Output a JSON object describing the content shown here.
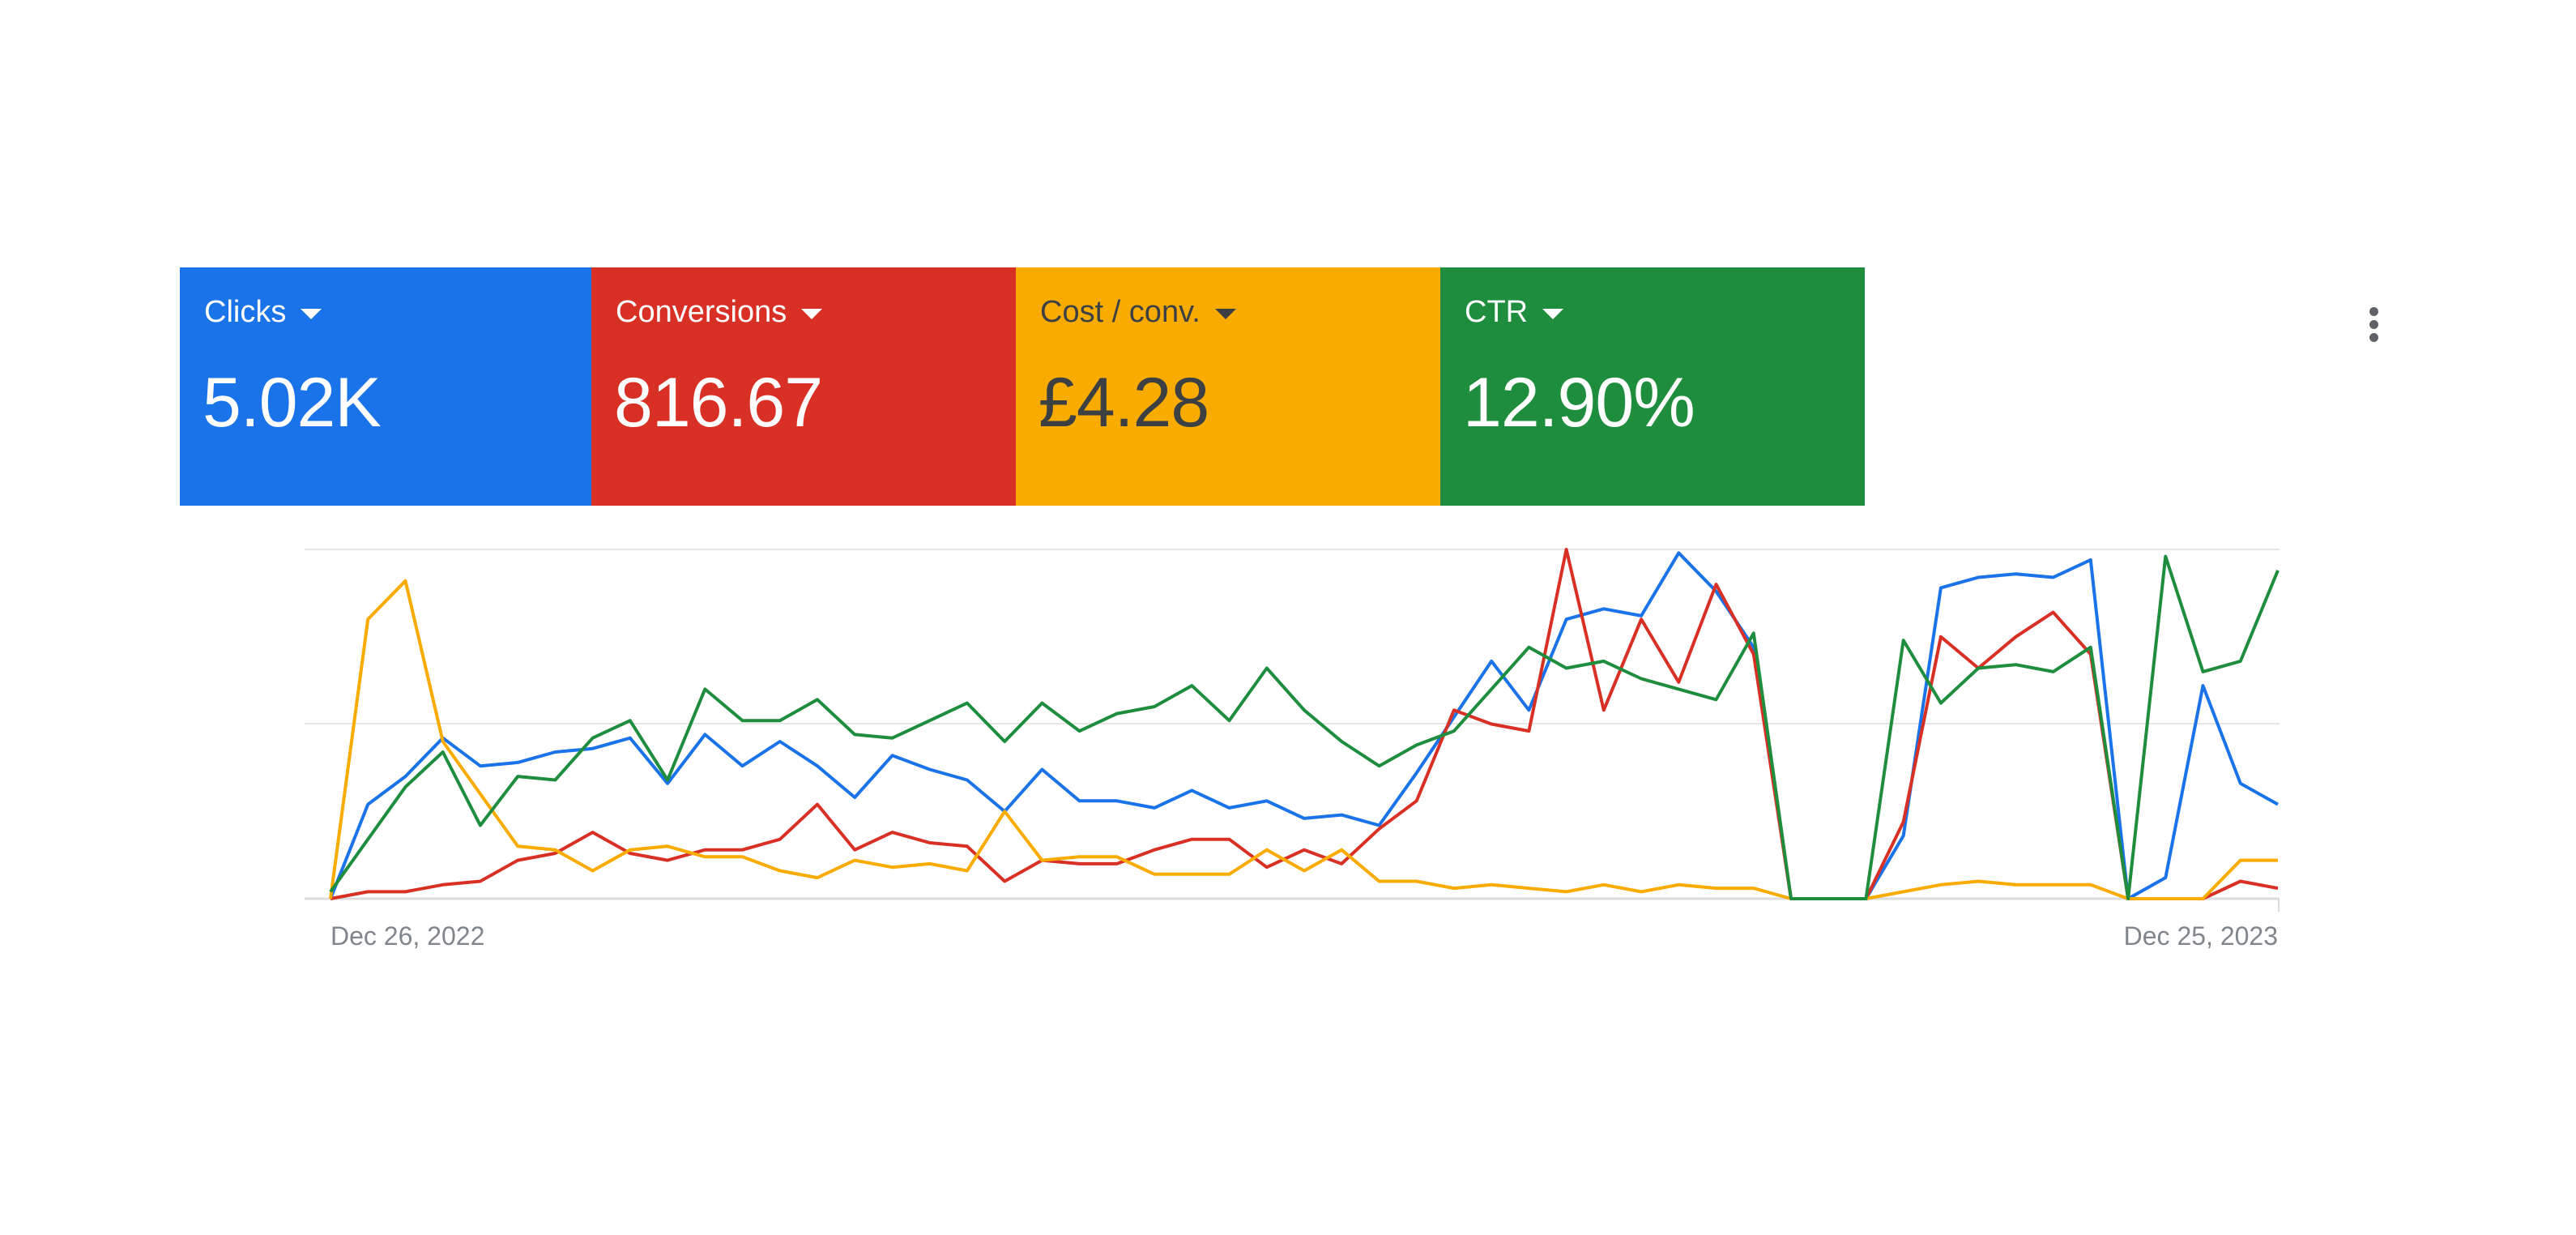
{
  "scorecards": [
    {
      "key": "clicks",
      "label": "Clicks",
      "value": "5.02K",
      "color": "#1a73e8"
    },
    {
      "key": "conversions",
      "label": "Conversions",
      "value": "816.67",
      "color": "#d93025"
    },
    {
      "key": "cost_conv",
      "label": "Cost / conv.",
      "value": "£4.28",
      "color": "#f9ab00"
    },
    {
      "key": "ctr",
      "label": "CTR",
      "value": "12.90%",
      "color": "#1e8e3e"
    }
  ],
  "more_icon": "more-vert-icon",
  "chart_data": {
    "type": "line",
    "x_start_label": "Dec 26, 2022",
    "x_end_label": "Dec 25, 2023",
    "grid": true,
    "y_axis_labels": false,
    "ylim": [
      0,
      100
    ],
    "series": [
      {
        "key": "clicks",
        "color": "#1a73e8",
        "values": [
          0,
          27,
          35,
          46,
          38,
          39,
          42,
          43,
          46,
          33,
          47,
          38,
          45,
          38,
          29,
          41,
          37,
          34,
          25,
          37,
          28,
          28,
          26,
          31,
          26,
          28,
          23,
          24,
          21,
          36,
          52,
          68,
          54,
          80,
          83,
          81,
          99,
          88,
          72,
          0,
          0,
          0,
          18,
          89,
          92,
          93,
          92,
          97,
          0,
          6,
          61,
          33,
          27
        ]
      },
      {
        "key": "conversions",
        "color": "#d93025",
        "values": [
          0,
          2,
          2,
          4,
          5,
          11,
          13,
          19,
          13,
          11,
          14,
          14,
          17,
          27,
          14,
          19,
          16,
          15,
          5,
          11,
          10,
          10,
          14,
          17,
          17,
          9,
          14,
          10,
          20,
          28,
          54,
          50,
          48,
          100,
          54,
          80,
          62,
          90,
          70,
          0,
          0,
          0,
          22,
          75,
          66,
          75,
          82,
          70,
          0,
          0,
          0,
          5,
          3
        ]
      },
      {
        "key": "cost_conv",
        "color": "#f9ab00",
        "values": [
          0,
          80,
          91,
          45,
          30,
          15,
          14,
          8,
          14,
          15,
          12,
          12,
          8,
          6,
          11,
          9,
          10,
          8,
          25,
          11,
          12,
          12,
          7,
          7,
          7,
          14,
          8,
          14,
          5,
          5,
          3,
          4,
          3,
          2,
          4,
          2,
          4,
          3,
          3,
          0,
          0,
          0,
          2,
          4,
          5,
          4,
          4,
          4,
          0,
          0,
          0,
          11,
          11
        ]
      },
      {
        "key": "ctr",
        "color": "#1e8e3e",
        "values": [
          2,
          17,
          32,
          42,
          21,
          35,
          34,
          46,
          51,
          34,
          60,
          51,
          51,
          57,
          47,
          46,
          51,
          56,
          45,
          56,
          48,
          53,
          55,
          61,
          51,
          66,
          54,
          45,
          38,
          44,
          48,
          60,
          72,
          66,
          68,
          63,
          60,
          57,
          76,
          0,
          0,
          0,
          74,
          56,
          66,
          67,
          65,
          72,
          0,
          98,
          65,
          68,
          94
        ]
      }
    ]
  }
}
